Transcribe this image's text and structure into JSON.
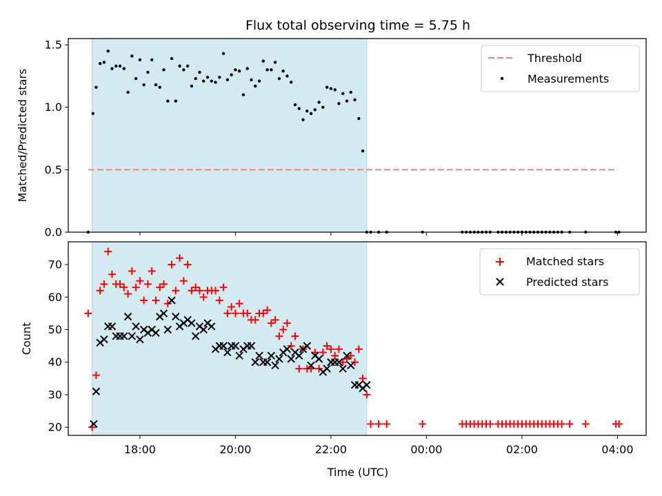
{
  "chart_data": [
    {
      "type": "scatter",
      "title": "Flux total observing time = 5.75 h",
      "xlabel": "",
      "ylabel": "Matched/Predicted stars",
      "ylim": [
        0.0,
        1.55
      ],
      "yticks": [
        "0.0",
        "0.5",
        "1.0",
        "1.5"
      ],
      "shaded_region": {
        "x_start": "17:00",
        "x_end": "22:45",
        "color": "#d4eaf1"
      },
      "threshold": {
        "name": "Threshold",
        "value": 0.5,
        "x_start": "16:55",
        "x_end": "04:00",
        "color": "#f08080",
        "style": "dashed"
      },
      "legend": {
        "position": "top-right",
        "entries": [
          "Threshold",
          "Measurements"
        ]
      },
      "series": [
        {
          "name": "Measurements",
          "color": "#000000",
          "marker": "dot",
          "x": [
            "16:55",
            "17:01",
            "17:05",
            "17:10",
            "17:15",
            "17:20",
            "17:25",
            "17:30",
            "17:35",
            "17:40",
            "17:45",
            "17:50",
            "17:55",
            "18:00",
            "18:05",
            "18:10",
            "18:15",
            "18:20",
            "18:25",
            "18:30",
            "18:35",
            "18:40",
            "18:45",
            "18:50",
            "18:55",
            "19:00",
            "19:05",
            "19:10",
            "19:15",
            "19:20",
            "19:25",
            "19:30",
            "19:35",
            "19:40",
            "19:45",
            "19:50",
            "19:55",
            "20:00",
            "20:05",
            "20:10",
            "20:15",
            "20:20",
            "20:25",
            "20:30",
            "20:35",
            "20:40",
            "20:45",
            "20:50",
            "20:55",
            "21:00",
            "21:05",
            "21:10",
            "21:15",
            "21:20",
            "21:25",
            "21:30",
            "21:35",
            "21:40",
            "21:45",
            "21:50",
            "21:55",
            "22:00",
            "22:05",
            "22:10",
            "22:15",
            "22:20",
            "22:25",
            "22:30",
            "22:35",
            "22:40",
            "22:45",
            "22:50",
            "23:00",
            "23:10",
            "23:55",
            "00:45",
            "00:50",
            "00:55",
            "01:00",
            "01:05",
            "01:10",
            "01:15",
            "01:20",
            "01:30",
            "01:35",
            "01:40",
            "01:45",
            "01:50",
            "01:55",
            "02:00",
            "02:05",
            "02:10",
            "02:15",
            "02:20",
            "02:25",
            "02:30",
            "02:35",
            "02:40",
            "02:45",
            "02:50",
            "03:00",
            "03:20",
            "03:58",
            "04:02"
          ],
          "y": [
            0.0,
            0.95,
            1.16,
            1.35,
            1.36,
            1.45,
            1.31,
            1.33,
            1.33,
            1.31,
            1.12,
            1.41,
            1.23,
            1.38,
            1.18,
            1.28,
            1.38,
            1.18,
            1.16,
            1.3,
            1.05,
            1.39,
            1.05,
            1.33,
            1.3,
            1.33,
            1.17,
            1.23,
            1.28,
            1.21,
            1.24,
            1.21,
            1.2,
            1.24,
            1.43,
            1.22,
            1.26,
            1.3,
            1.29,
            1.1,
            1.31,
            1.22,
            1.17,
            1.21,
            1.37,
            1.3,
            1.3,
            1.36,
            1.23,
            1.29,
            1.25,
            1.2,
            1.02,
            0.99,
            0.9,
            0.97,
            0.95,
            0.98,
            1.04,
            1.0,
            1.16,
            1.15,
            1.14,
            1.03,
            1.11,
            1.05,
            1.12,
            1.06,
            0.91,
            0.65,
            0.0,
            0.0,
            0.0,
            0.0,
            0.0,
            0.0,
            0.0,
            0.0,
            0.0,
            0.0,
            0.0,
            0.0,
            0.0,
            0.0,
            0.0,
            0.0,
            0.0,
            0.0,
            0.0,
            0.0,
            0.0,
            0.0,
            0.0,
            0.0,
            0.0,
            0.0,
            0.0,
            0.0,
            0.0,
            0.0,
            0.0,
            0.0,
            0.0,
            0.0
          ]
        }
      ]
    },
    {
      "type": "scatter",
      "title": "",
      "xlabel": "Time (UTC)",
      "ylabel": "Count",
      "ylim": [
        17.5,
        77
      ],
      "yticks": [
        "20",
        "30",
        "40",
        "50",
        "60",
        "70"
      ],
      "xticks": [
        "18:00",
        "20:00",
        "22:00",
        "00:00",
        "02:00",
        "04:00"
      ],
      "shaded_region": {
        "x_start": "17:00",
        "x_end": "22:45",
        "color": "#d4eaf1"
      },
      "legend": {
        "position": "top-right",
        "entries": [
          "Matched stars",
          "Predicted stars"
        ]
      },
      "series": [
        {
          "name": "Matched stars",
          "color": "#ff0000",
          "marker": "plus",
          "x": [
            "16:55",
            "17:00",
            "17:05",
            "17:10",
            "17:15",
            "17:20",
            "17:25",
            "17:30",
            "17:35",
            "17:40",
            "17:45",
            "17:50",
            "17:55",
            "18:00",
            "18:05",
            "18:10",
            "18:15",
            "18:20",
            "18:25",
            "18:30",
            "18:35",
            "18:40",
            "18:45",
            "18:50",
            "18:55",
            "19:00",
            "19:05",
            "19:10",
            "19:15",
            "19:20",
            "19:25",
            "19:30",
            "19:35",
            "19:40",
            "19:45",
            "19:50",
            "19:55",
            "20:00",
            "20:05",
            "20:10",
            "20:15",
            "20:20",
            "20:25",
            "20:30",
            "20:35",
            "20:40",
            "20:45",
            "20:50",
            "20:55",
            "21:00",
            "21:05",
            "21:10",
            "21:15",
            "21:20",
            "21:25",
            "21:30",
            "21:35",
            "21:40",
            "21:45",
            "21:50",
            "21:55",
            "22:00",
            "22:05",
            "22:10",
            "22:15",
            "22:20",
            "22:25",
            "22:30",
            "22:35",
            "22:40",
            "22:45",
            "22:50",
            "23:00",
            "23:10",
            "23:55",
            "00:45",
            "00:50",
            "00:55",
            "01:00",
            "01:05",
            "01:10",
            "01:15",
            "01:20",
            "01:30",
            "01:35",
            "01:40",
            "01:45",
            "01:50",
            "01:55",
            "02:00",
            "02:05",
            "02:10",
            "02:15",
            "02:20",
            "02:25",
            "02:30",
            "02:35",
            "02:40",
            "02:45",
            "02:50",
            "03:00",
            "03:20",
            "03:58",
            "04:02"
          ],
          "y": [
            55,
            20,
            36,
            62,
            64,
            74,
            67,
            64,
            64,
            63,
            61,
            68,
            63,
            65,
            59,
            64,
            68,
            59,
            63,
            64,
            58,
            70,
            62,
            72,
            65,
            70,
            62,
            63,
            62,
            60,
            62,
            62,
            62,
            59,
            63,
            55,
            57,
            55,
            58,
            55,
            55,
            53,
            53,
            55,
            55,
            56,
            52,
            53,
            48,
            50,
            52,
            45,
            48,
            38,
            44,
            38,
            38,
            43,
            38,
            43,
            45,
            44,
            42,
            44,
            40,
            41,
            42,
            40,
            44,
            35,
            30,
            21,
            21,
            21,
            21,
            21,
            21,
            21,
            21,
            21,
            21,
            21,
            21,
            21,
            21,
            21,
            21,
            21,
            21,
            21,
            21,
            21,
            21,
            21,
            21,
            21,
            21,
            21,
            21,
            21,
            21,
            21,
            21,
            21
          ]
        },
        {
          "name": "Predicted stars",
          "color": "#000000",
          "marker": "x",
          "x": [
            "17:02",
            "17:05",
            "17:10",
            "17:15",
            "17:20",
            "17:25",
            "17:30",
            "17:35",
            "17:40",
            "17:45",
            "17:50",
            "17:55",
            "18:00",
            "18:05",
            "18:10",
            "18:15",
            "18:20",
            "18:25",
            "18:30",
            "18:35",
            "18:40",
            "18:45",
            "18:50",
            "18:55",
            "19:00",
            "19:05",
            "19:10",
            "19:15",
            "19:20",
            "19:25",
            "19:30",
            "19:35",
            "19:40",
            "19:45",
            "19:50",
            "19:55",
            "20:00",
            "20:05",
            "20:10",
            "20:15",
            "20:20",
            "20:25",
            "20:30",
            "20:35",
            "20:40",
            "20:45",
            "20:50",
            "20:55",
            "21:00",
            "21:05",
            "21:10",
            "21:15",
            "21:20",
            "21:25",
            "21:30",
            "21:35",
            "21:40",
            "21:45",
            "21:50",
            "21:55",
            "22:00",
            "22:05",
            "22:10",
            "22:15",
            "22:20",
            "22:25",
            "22:30",
            "22:35",
            "22:40",
            "22:45"
          ],
          "y": [
            21,
            31,
            46,
            47,
            51,
            51,
            48,
            48,
            48,
            54,
            48,
            51,
            47,
            50,
            49,
            50,
            49,
            54,
            55,
            50,
            59,
            54,
            51,
            52,
            53,
            52,
            48,
            51,
            50,
            52,
            51,
            44,
            45,
            45,
            43,
            45,
            45,
            42,
            44,
            45,
            45,
            40,
            42,
            40,
            40,
            42,
            39,
            41,
            43,
            44,
            41,
            43,
            42,
            44,
            45,
            39,
            42,
            41,
            37,
            38,
            40,
            40,
            40,
            38,
            42,
            39,
            33,
            33,
            32,
            33
          ]
        }
      ]
    }
  ]
}
